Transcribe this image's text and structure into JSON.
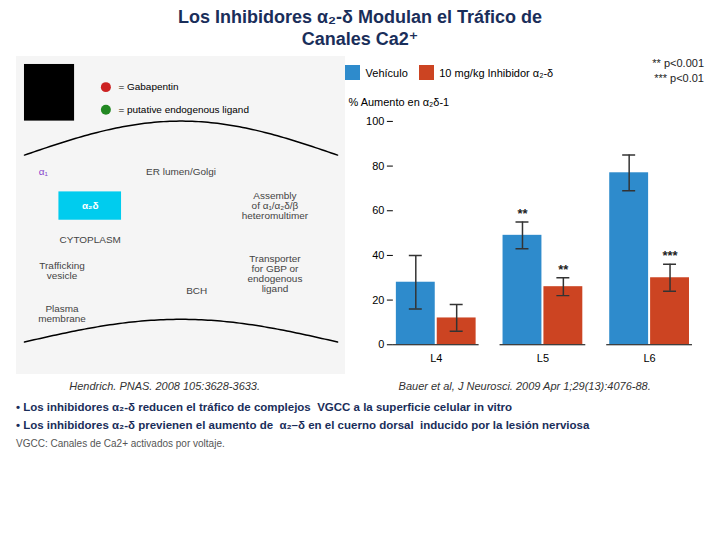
{
  "chart_data": {
    "type": "bar",
    "title": "Los Inhibidores α₂-δ Modulan el Tráfico de\nCanales Ca2⁺",
    "categories": [
      "L4",
      "L5",
      "L6"
    ],
    "series": [
      {
        "name": "Vehículo",
        "color": "#2e8bcc",
        "values": [
          28,
          49,
          77
        ],
        "errors": [
          12,
          6,
          8
        ]
      },
      {
        "name": "10 mg/kg Inhibidor α₂-δ",
        "color": "#cc4422",
        "values": [
          12,
          26,
          30
        ],
        "errors": [
          6,
          4,
          6
        ]
      }
    ],
    "ylabel": "% Aumento en α₂δ-1",
    "ylim": [
      0,
      100
    ],
    "yticks": [
      0,
      20,
      40,
      60,
      80,
      100
    ],
    "grid": false,
    "legend": "upper left",
    "annotations": [
      {
        "text": "**",
        "category": "L5",
        "series": "10 mg/kg Inhibidor α₂-δ"
      },
      {
        "text": "***",
        "category": "L6",
        "series": "10 mg/kg Inhibidor α₂-δ"
      },
      {
        "text": "**",
        "category": "L5",
        "series": "Vehículo"
      }
    ],
    "significance_key": "** p<0.001\n*** p<0.01",
    "diagram_labels": [
      "α₂δ",
      "α₁",
      "= Gabapentin",
      "= putative endogenous ligand",
      "ER lumen/Golgi",
      "CYTOPLASM",
      "Trafficking\nvesicle",
      "Plasma\nmembrane",
      "BCH",
      "Assembly\nof α₁/α₂δ/β\nheteromultimer",
      "Transporter\nfor GBP or\nendogenous\nligand"
    ],
    "references": [
      "Hendrich. PNAS. 2008 105:3628-3633.",
      "Bauer et al, J Neurosci. 2009 Apr 1;29(13):4076-88."
    ],
    "bullets": [
      "• Los inhibidores α₂-δ reducen el tráfico de complejos  VGCC a la superficie celular in vitro",
      "• Los inhibidores α₂-δ previenen el aumento de  α₂–δ en el cuerno dorsal  inducido por la lesión nerviosa"
    ],
    "footnote": "VGCC: Canales de Ca2+ activados por voltaje."
  }
}
